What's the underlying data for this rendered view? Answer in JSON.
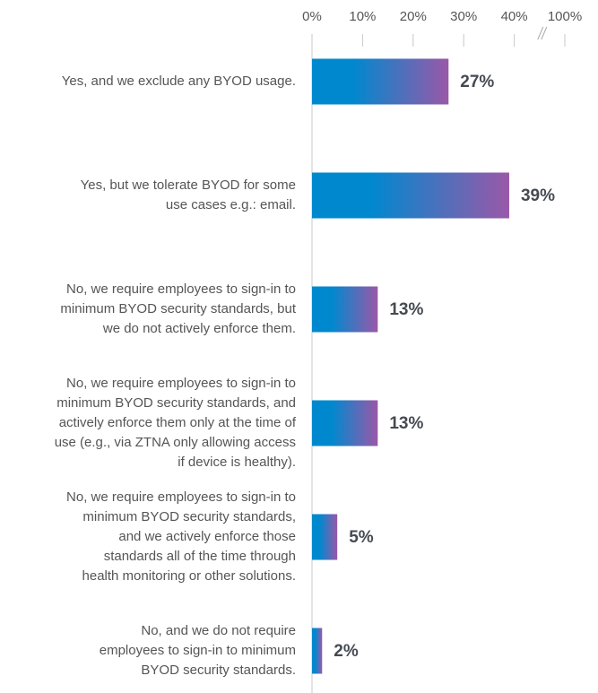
{
  "chart_data": {
    "type": "bar",
    "orientation": "horizontal",
    "categories": [
      "Yes, and we exclude any BYOD usage.",
      "Yes, but we tolerate BYOD for some\nuse cases e.g.: email.",
      "No, we require employees to sign-in to\nminimum BYOD security standards, but\nwe do not actively enforce them.",
      "No, we require employees to sign-in to\nminimum BYOD security standards, and\nactively enforce them only at the time of\nuse (e.g., via ZTNA only allowing access\nif device is healthy).",
      "No, we require employees to sign-in to\nminimum BYOD security standards,\nand we actively enforce those\nstandards all of the time through\nhealth monitoring or other solutions.",
      "No, and we do not require\nemployees to sign-in to minimum\nBYOD security standards."
    ],
    "values": [
      27,
      39,
      13,
      13,
      5,
      2
    ],
    "value_labels": [
      "27%",
      "39%",
      "13%",
      "13%",
      "5%",
      "2%"
    ],
    "colors": [
      "#0088cf",
      "#9a58a8"
    ],
    "xlim": [
      0,
      100
    ],
    "axis_break": [
      40,
      100
    ],
    "xticks": [
      {
        "value": 0,
        "label": "0%"
      },
      {
        "value": 10,
        "label": "10%"
      },
      {
        "value": 20,
        "label": "20%"
      },
      {
        "value": 30,
        "label": "30%"
      },
      {
        "value": 40,
        "label": "40%"
      },
      {
        "value": 100,
        "label": "100%"
      }
    ]
  }
}
